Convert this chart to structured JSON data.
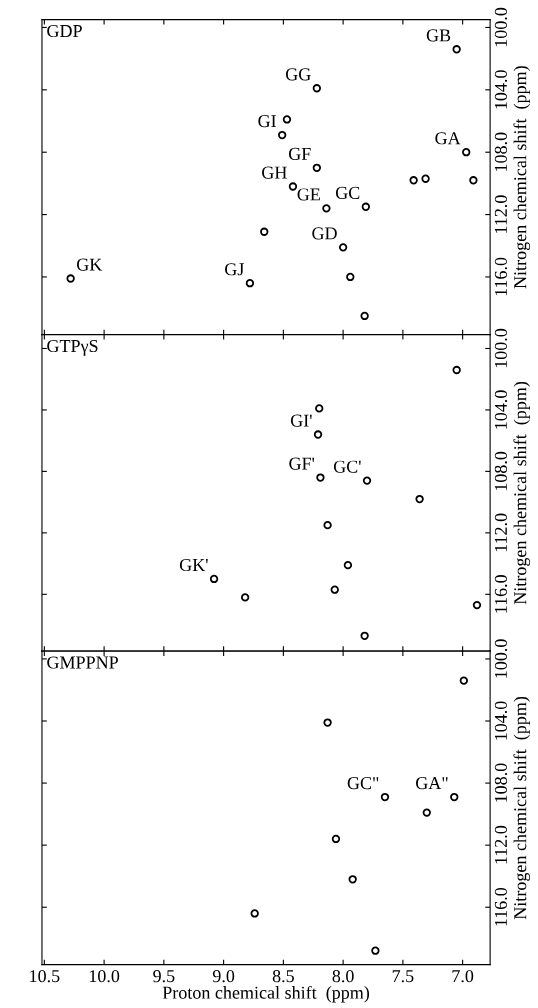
{
  "chart_data": [
    {
      "type": "scatter",
      "title": "GDP",
      "ylabel": "Nitrogen chemical shift  (ppm)",
      "xlim": [
        10.52,
        6.77
      ],
      "ylim": [
        119.7,
        99.5
      ],
      "xticks": [
        {
          "value": 10.5,
          "label": null
        },
        {
          "value": 10.0,
          "label": null
        },
        {
          "value": 9.5,
          "label": null
        },
        {
          "value": 9.0,
          "label": null
        },
        {
          "value": 8.5,
          "label": null
        },
        {
          "value": 8.0,
          "label": null
        },
        {
          "value": 7.5,
          "label": null
        },
        {
          "value": 7.0,
          "label": null
        }
      ],
      "yticks": [
        {
          "value": 100,
          "label": "100.0"
        },
        {
          "value": 104,
          "label": "104.0"
        },
        {
          "value": 108,
          "label": "108.0"
        },
        {
          "value": 112,
          "label": "112.0"
        },
        {
          "value": 116,
          "label": "116.0"
        }
      ],
      "tick_labels": "y",
      "marker": "circle",
      "grid": false,
      "legend": false,
      "series": [
        {
          "color": "#000000",
          "x": [
            7.05,
            8.22,
            8.47,
            8.51,
            6.97,
            8.22,
            7.41,
            7.31,
            6.91,
            8.42,
            8.14,
            7.81,
            8.66,
            8.0,
            7.94,
            10.28,
            8.78,
            7.82
          ],
          "values": [
            101.4,
            103.9,
            105.9,
            106.9,
            108.0,
            109.0,
            109.8,
            109.7,
            109.8,
            110.2,
            111.6,
            111.5,
            113.1,
            114.1,
            116.0,
            116.1,
            116.4,
            118.5
          ]
        }
      ],
      "annotations": [
        {
          "text": "GB",
          "x": 7.05,
          "y": 101.4
        },
        {
          "text": "GG",
          "x": 8.22,
          "y": 103.9
        },
        {
          "text": "GI",
          "x": 8.51,
          "y": 106.9
        },
        {
          "text": "GA",
          "x": 6.97,
          "y": 108.0
        },
        {
          "text": "GF",
          "x": 8.22,
          "y": 109.0
        },
        {
          "text": "GH",
          "x": 8.42,
          "y": 110.2
        },
        {
          "text": "GC",
          "x": 7.81,
          "y": 111.5
        },
        {
          "text": "GE",
          "x": 8.14,
          "y": 111.6
        },
        {
          "text": "GD",
          "x": 8.0,
          "y": 114.1
        },
        {
          "text": "GK",
          "x": 10.28,
          "y": 116.1
        },
        {
          "text": "GJ",
          "x": 8.78,
          "y": 116.4
        }
      ]
    },
    {
      "type": "scatter",
      "title": "GTPγS",
      "ylabel": "Nitrogen chemical shift  (ppm)",
      "xlim": [
        10.52,
        6.77
      ],
      "ylim": [
        119.7,
        99.1
      ],
      "xticks": [
        {
          "value": 10.5,
          "label": null
        },
        {
          "value": 10.0,
          "label": null
        },
        {
          "value": 9.5,
          "label": null
        },
        {
          "value": 9.0,
          "label": null
        },
        {
          "value": 8.5,
          "label": null
        },
        {
          "value": 8.0,
          "label": null
        },
        {
          "value": 7.5,
          "label": null
        },
        {
          "value": 7.0,
          "label": null
        }
      ],
      "yticks": [
        {
          "value": 100,
          "label": "100.0"
        },
        {
          "value": 104,
          "label": "104.0"
        },
        {
          "value": 108,
          "label": "108.0"
        },
        {
          "value": 112,
          "label": "112.0"
        },
        {
          "value": 116,
          "label": "116.0"
        }
      ],
      "tick_labels": "y",
      "marker": "circle",
      "grid": false,
      "legend": false,
      "series": [
        {
          "color": "#000000",
          "x": [
            7.05,
            8.2,
            8.21,
            8.19,
            7.8,
            7.36,
            8.13,
            7.96,
            9.08,
            8.07,
            8.82,
            6.88,
            7.82
          ],
          "values": [
            101.4,
            103.9,
            105.6,
            108.4,
            108.6,
            109.8,
            111.5,
            114.1,
            115.0,
            115.7,
            116.2,
            116.7,
            118.7
          ]
        }
      ],
      "annotations": [
        {
          "text": "GI'",
          "x": 8.21,
          "y": 105.6
        },
        {
          "text": "GC'",
          "x": 7.8,
          "y": 108.6
        },
        {
          "text": "GF'",
          "x": 8.19,
          "y": 108.4
        },
        {
          "text": "GK'",
          "x": 9.08,
          "y": 115.0
        }
      ]
    },
    {
      "type": "scatter",
      "title": "GMPPNP",
      "xlabel": "Proton chemical shift  (ppm)",
      "ylabel": "Nitrogen chemical shift  (ppm)",
      "xlim": [
        10.52,
        6.77
      ],
      "ylim": [
        119.7,
        99.5
      ],
      "xticks": [
        {
          "value": 10.5,
          "label": "10.5"
        },
        {
          "value": 10.0,
          "label": "10.0"
        },
        9.5,
        {
          "value": 9.0,
          "label": "9.0"
        },
        8.5,
        {
          "value": 8.0,
          "label": "8.0"
        },
        7.5,
        {
          "value": 7.0,
          "label": "7.0"
        }
      ],
      "yticks": [
        {
          "value": 100,
          "label": "100.0"
        },
        {
          "value": 104,
          "label": "104.0"
        },
        {
          "value": 108,
          "label": "108.0"
        },
        {
          "value": 112,
          "label": "112.0"
        },
        {
          "value": 116,
          "label": "116.0"
        }
      ],
      "marker": "circle",
      "grid": false,
      "legend": false,
      "series": [
        {
          "color": "#000000",
          "x": [
            6.99,
            8.13,
            7.65,
            7.07,
            7.3,
            8.06,
            7.92,
            8.74,
            7.73
          ],
          "values": [
            101.4,
            104.1,
            108.9,
            108.9,
            109.9,
            111.6,
            114.2,
            116.4,
            118.8
          ]
        }
      ],
      "annotations": [
        {
          "text": "GC\"",
          "x": 7.65,
          "y": 108.9
        },
        {
          "text": "GA\"",
          "x": 7.07,
          "y": 108.9
        }
      ]
    }
  ]
}
